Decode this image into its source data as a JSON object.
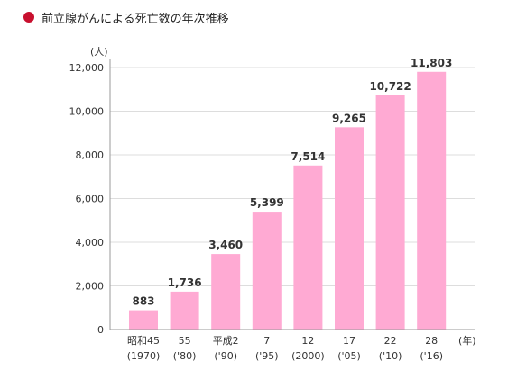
{
  "title": "前立腺がんによる死亡数の年次推移",
  "colors": {
    "bullet": "#c8102e",
    "bar": "#ffaad3",
    "grid": "#dddddd",
    "axis": "#999999",
    "text": "#333333"
  },
  "chart_data": {
    "type": "bar",
    "title": "前立腺がんによる死亡数の年次推移",
    "ylabel": "(人)",
    "xlabel": "(年)",
    "ylim": [
      0,
      12000
    ],
    "yticks": [
      0,
      2000,
      4000,
      6000,
      8000,
      10000,
      12000
    ],
    "ytick_labels": [
      "0",
      "2,000",
      "4,000",
      "6,000",
      "8,000",
      "10,000",
      "12,000"
    ],
    "grid": true,
    "categories": [
      [
        "昭和45",
        "(1970)"
      ],
      [
        "55",
        "('80)"
      ],
      [
        "平成2",
        "('90)"
      ],
      [
        "7",
        "('95)"
      ],
      [
        "12",
        "(2000)"
      ],
      [
        "17",
        "('05)"
      ],
      [
        "22",
        "('10)"
      ],
      [
        "28",
        "('16)"
      ]
    ],
    "values": [
      883,
      1736,
      3460,
      5399,
      7514,
      9265,
      10722,
      11803
    ],
    "value_labels": [
      "883",
      "1,736",
      "3,460",
      "5,399",
      "7,514",
      "9,265",
      "10,722",
      "11,803"
    ]
  }
}
